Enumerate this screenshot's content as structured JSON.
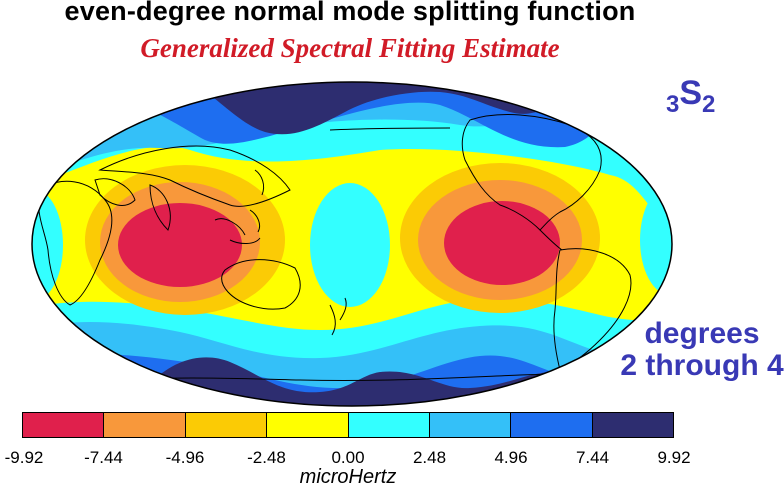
{
  "title": "even-degree normal mode splitting function",
  "subtitle": "Generalized Spectral Fitting Estimate",
  "mode_label": {
    "pre_sub": "3",
    "main": "S",
    "post_sub": "2"
  },
  "degrees_line1": "degrees",
  "degrees_line2": "2 through 4",
  "colorbar": {
    "units": "microHertz",
    "ticks": [
      "-9.92",
      "-7.44",
      "-4.96",
      "-2.48",
      "0.00",
      "2.48",
      "4.96",
      "7.44",
      "9.92"
    ],
    "colors": [
      "#e0204c",
      "#f8983b",
      "#fbcb05",
      "#ffff00",
      "#33ffff",
      "#34c0f8",
      "#1e6ef0",
      "#2d2d70"
    ]
  },
  "map": {
    "projection": "Hammer-Aitoff",
    "central_meridian": "180",
    "colors": {
      "ocean_fill": "#ffff00",
      "land_outline": "#000000",
      "border": "#000000"
    }
  }
}
